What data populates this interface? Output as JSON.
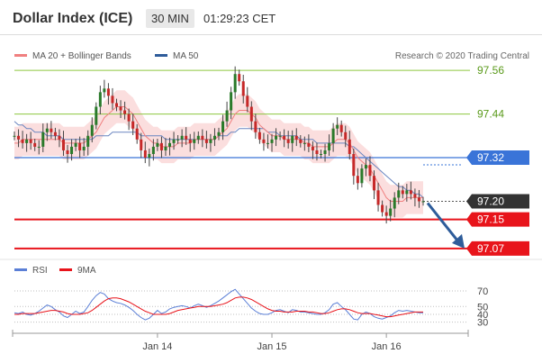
{
  "header": {
    "title": "Dollar Index (ICE)",
    "interval": "30 MIN",
    "time": "01:29:23 CET"
  },
  "chart_data": [
    {
      "type": "candlestick",
      "legend": [
        {
          "name": "MA 20 + Bollinger Bands",
          "color": "#f08080"
        },
        {
          "name": "MA 50",
          "color": "#2e5c9a"
        }
      ],
      "attribution": "Research © 2020 Trading Central",
      "ylim": [
        97.05,
        97.6
      ],
      "price_levels": [
        {
          "label": "97.56",
          "value": 97.56,
          "color": "#8dc63f",
          "style": "line"
        },
        {
          "label": "97.44",
          "value": 97.44,
          "color": "#8dc63f",
          "style": "line"
        },
        {
          "label": "97.32",
          "value": 97.32,
          "color": "#3a74d8",
          "style": "line"
        },
        {
          "label": "97.20",
          "value": 97.2,
          "color": "#333333",
          "style": "last-price"
        },
        {
          "label": "97.15",
          "value": 97.15,
          "color": "#e8141b",
          "style": "line"
        },
        {
          "label": "97.07",
          "value": 97.07,
          "color": "#e8141b",
          "style": "line"
        }
      ],
      "close": [
        97.38,
        97.37,
        97.36,
        97.37,
        97.36,
        97.35,
        97.35,
        97.39,
        97.4,
        97.39,
        97.38,
        97.37,
        97.34,
        97.33,
        97.35,
        97.36,
        97.34,
        97.35,
        97.38,
        97.41,
        97.46,
        97.5,
        97.51,
        97.49,
        97.47,
        97.46,
        97.45,
        97.44,
        97.42,
        97.4,
        97.37,
        97.34,
        97.32,
        97.33,
        97.35,
        97.36,
        97.34,
        97.35,
        97.36,
        97.37,
        97.37,
        97.38,
        97.37,
        97.36,
        97.37,
        97.38,
        97.37,
        97.36,
        97.37,
        97.38,
        97.39,
        97.42,
        97.45,
        97.5,
        97.55,
        97.53,
        97.49,
        97.46,
        97.42,
        97.39,
        97.37,
        97.36,
        97.36,
        97.37,
        97.38,
        97.38,
        97.37,
        97.36,
        97.38,
        97.37,
        97.36,
        97.36,
        97.35,
        97.34,
        97.33,
        97.33,
        97.34,
        97.36,
        97.4,
        97.41,
        97.39,
        97.37,
        97.33,
        97.27,
        97.25,
        97.29,
        97.3,
        97.27,
        97.23,
        97.19,
        97.17,
        97.16,
        97.18,
        97.21,
        97.23,
        97.22,
        97.23,
        97.22,
        97.21,
        97.2,
        97.2
      ],
      "ma20": [
        97.36,
        97.36,
        97.37,
        97.37,
        97.37,
        97.37,
        97.37,
        97.37,
        97.37,
        97.37,
        97.37,
        97.37,
        97.36,
        97.36,
        97.36,
        97.36,
        97.36,
        97.36,
        97.37,
        97.38,
        97.39,
        97.41,
        97.43,
        97.44,
        97.45,
        97.46,
        97.46,
        97.46,
        97.45,
        97.44,
        97.42,
        97.4,
        97.38,
        97.37,
        97.36,
        97.36,
        97.35,
        97.35,
        97.35,
        97.35,
        97.36,
        97.36,
        97.36,
        97.36,
        97.37,
        97.37,
        97.37,
        97.37,
        97.37,
        97.37,
        97.38,
        97.39,
        97.4,
        97.42,
        97.44,
        97.45,
        97.45,
        97.45,
        97.44,
        97.43,
        97.41,
        97.4,
        97.39,
        97.38,
        97.38,
        97.38,
        97.37,
        97.37,
        97.37,
        97.37,
        97.37,
        97.36,
        97.36,
        97.35,
        97.35,
        97.35,
        97.35,
        97.35,
        97.36,
        97.37,
        97.37,
        97.37,
        97.36,
        97.34,
        97.32,
        97.31,
        97.3,
        97.29,
        97.27,
        97.25,
        97.23,
        97.21,
        97.2,
        97.2,
        97.2,
        97.2,
        97.21,
        97.21,
        97.21,
        97.21,
        97.21
      ],
      "ma50": [
        97.42,
        97.41,
        97.41,
        97.4,
        97.4,
        97.39,
        97.39,
        97.39,
        97.38,
        97.38,
        97.38,
        97.38,
        97.37,
        97.37,
        97.37,
        97.37,
        97.37,
        97.37,
        97.37,
        97.37,
        97.38,
        97.38,
        97.38,
        97.38,
        97.39,
        97.39,
        97.39,
        97.39,
        97.39,
        97.39,
        97.39,
        97.38,
        97.38,
        97.38,
        97.38,
        97.38,
        97.38,
        97.37,
        97.37,
        97.37,
        97.37,
        97.37,
        97.37,
        97.37,
        97.37,
        97.37,
        97.37,
        97.37,
        97.37,
        97.37,
        97.38,
        97.38,
        97.38,
        97.39,
        97.39,
        97.4,
        97.4,
        97.4,
        97.4,
        97.4,
        97.4,
        97.4,
        97.39,
        97.39,
        97.39,
        97.38,
        97.38,
        97.38,
        97.38,
        97.38,
        97.37,
        97.37,
        97.37,
        97.37,
        97.36,
        97.36,
        97.36,
        97.36,
        97.36,
        97.36,
        97.36,
        97.36,
        97.35,
        97.35,
        97.34,
        97.33,
        97.32,
        97.31,
        97.3,
        97.29,
        97.28,
        97.27,
        97.26,
        97.25,
        97.24,
        97.24,
        97.23,
        97.23,
        97.22,
        97.22,
        97.21
      ],
      "band_width": 0.045,
      "forecast": {
        "from": 97.2,
        "to": 97.07
      }
    },
    {
      "type": "line",
      "legend": [
        {
          "name": "RSI",
          "color": "#5b7fd6"
        },
        {
          "name": "9MA",
          "color": "#e8141b"
        }
      ],
      "ylim": [
        25,
        78
      ],
      "y_ticks": [
        70,
        50,
        40,
        30
      ],
      "x_ticks": [
        {
          "label": "Jan 14",
          "index": 35
        },
        {
          "label": "Jan 15",
          "index": 63
        },
        {
          "label": "Jan 16",
          "index": 91
        }
      ],
      "rsi": [
        42,
        41,
        43,
        40,
        39,
        41,
        44,
        48,
        52,
        50,
        46,
        43,
        38,
        36,
        40,
        44,
        41,
        43,
        50,
        58,
        64,
        68,
        66,
        60,
        57,
        55,
        54,
        52,
        49,
        45,
        40,
        36,
        33,
        35,
        40,
        45,
        41,
        43,
        47,
        49,
        50,
        51,
        50,
        48,
        51,
        53,
        51,
        49,
        51,
        54,
        57,
        61,
        65,
        69,
        72,
        66,
        60,
        54,
        48,
        44,
        41,
        40,
        40,
        42,
        45,
        46,
        44,
        42,
        46,
        45,
        43,
        43,
        42,
        41,
        40,
        40,
        42,
        46,
        53,
        55,
        50,
        46,
        40,
        34,
        33,
        40,
        43,
        41,
        37,
        35,
        34,
        36,
        38,
        42,
        45,
        44,
        45,
        44,
        43,
        42,
        42
      ],
      "ma9": [
        40,
        40,
        41,
        41,
        41,
        41,
        42,
        43,
        44,
        45,
        45,
        44,
        43,
        41,
        40,
        40,
        40,
        41,
        42,
        45,
        49,
        53,
        57,
        60,
        61,
        61,
        60,
        58,
        56,
        53,
        50,
        47,
        44,
        42,
        40,
        40,
        40,
        40,
        41,
        43,
        45,
        46,
        47,
        48,
        49,
        50,
        50,
        50,
        50,
        51,
        52,
        53,
        55,
        58,
        61,
        62,
        62,
        61,
        59,
        56,
        53,
        50,
        47,
        45,
        44,
        44,
        43,
        43,
        43,
        44,
        44,
        44,
        43,
        43,
        42,
        41,
        41,
        42,
        44,
        46,
        47,
        47,
        46,
        44,
        42,
        41,
        41,
        41,
        40,
        39,
        38,
        37,
        37,
        38,
        39,
        40,
        41,
        42,
        43,
        43,
        43
      ]
    }
  ]
}
